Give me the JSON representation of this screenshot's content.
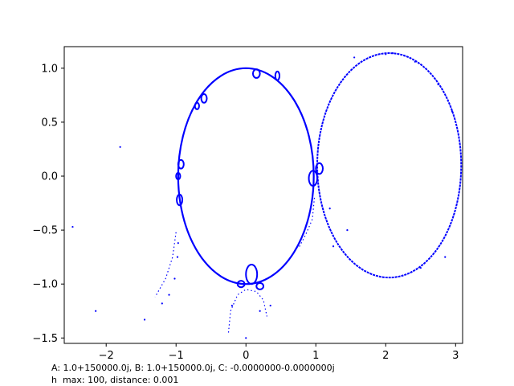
{
  "chart_data": {
    "type": "scatter",
    "title": "",
    "xlabel": "",
    "ylabel": "",
    "xlim": [
      -2.6,
      3.1
    ],
    "ylim": [
      -1.55,
      1.2
    ],
    "xticks": [
      -2,
      -1,
      0,
      1,
      2,
      3
    ],
    "xtick_labels": [
      "−2",
      "−1",
      "0",
      "1",
      "2",
      "3"
    ],
    "yticks": [
      -1.5,
      -1.0,
      -0.5,
      0.0,
      0.5,
      1.0
    ],
    "ytick_labels": [
      "−1.5",
      "−1.0",
      "−0.5",
      "0.0",
      "0.5",
      "1.0"
    ],
    "grid": false,
    "legend": "none",
    "point_color": "#0000ff",
    "line_color": "#000000",
    "curves": [
      {
        "kind": "ellipse",
        "cx": 0.0,
        "cy": 0.0,
        "rx": 0.97,
        "ry": 1.0
      },
      {
        "kind": "ellipse",
        "cx": 2.05,
        "cy": 0.1,
        "rx": 1.03,
        "ry": 1.04
      }
    ],
    "loops": [
      {
        "x": 0.08,
        "y": -0.91,
        "rx": 0.08,
        "ry": 0.09
      },
      {
        "x": -0.07,
        "y": -1.0,
        "rx": 0.05,
        "ry": 0.03
      },
      {
        "x": 0.2,
        "y": -1.02,
        "rx": 0.05,
        "ry": 0.03
      },
      {
        "x": -0.95,
        "y": -0.22,
        "rx": 0.04,
        "ry": 0.05
      },
      {
        "x": -0.93,
        "y": 0.11,
        "rx": 0.04,
        "ry": 0.04
      },
      {
        "x": -0.97,
        "y": 0.0,
        "rx": 0.03,
        "ry": 0.03
      },
      {
        "x": 0.96,
        "y": -0.02,
        "rx": 0.06,
        "ry": 0.07
      },
      {
        "x": 1.05,
        "y": 0.07,
        "rx": 0.05,
        "ry": 0.05
      },
      {
        "x": 0.15,
        "y": 0.95,
        "rx": 0.05,
        "ry": 0.04
      },
      {
        "x": 0.45,
        "y": 0.93,
        "rx": 0.03,
        "ry": 0.04
      },
      {
        "x": -0.6,
        "y": 0.72,
        "rx": 0.04,
        "ry": 0.04
      },
      {
        "x": -0.7,
        "y": 0.65,
        "rx": 0.03,
        "ry": 0.03
      }
    ],
    "scatter_points": [
      [
        -2.48,
        -0.47
      ],
      [
        -2.15,
        -1.25
      ],
      [
        -1.8,
        0.27
      ],
      [
        -1.45,
        -1.33
      ],
      [
        -1.2,
        -1.18
      ],
      [
        -1.1,
        -1.1
      ],
      [
        -1.02,
        -0.95
      ],
      [
        -0.98,
        -0.75
      ],
      [
        -0.97,
        -0.62
      ],
      [
        0.0,
        -1.5
      ],
      [
        0.35,
        -1.2
      ],
      [
        0.2,
        -1.25
      ],
      [
        -0.2,
        -1.2
      ],
      [
        2.42,
        1.06
      ],
      [
        2.75,
        0.85
      ],
      [
        2.1,
        1.14
      ],
      [
        2.0,
        1.13
      ],
      [
        1.55,
        1.1
      ],
      [
        2.95,
        0.6
      ],
      [
        1.25,
        -0.65
      ],
      [
        2.85,
        -0.75
      ],
      [
        2.5,
        -0.85
      ],
      [
        1.45,
        -0.5
      ],
      [
        1.2,
        -0.3
      ]
    ],
    "branches": [
      {
        "points": [
          [
            -1.0,
            -0.52
          ],
          [
            -1.05,
            -0.75
          ],
          [
            -1.15,
            -0.95
          ],
          [
            -1.3,
            -1.12
          ]
        ]
      },
      {
        "points": [
          [
            -0.25,
            -1.45
          ],
          [
            -0.22,
            -1.25
          ],
          [
            -0.12,
            -1.1
          ],
          [
            0.0,
            -1.05
          ],
          [
            0.15,
            -1.07
          ],
          [
            0.25,
            -1.15
          ],
          [
            0.3,
            -1.3
          ]
        ]
      },
      {
        "points": [
          [
            0.98,
            -0.2
          ],
          [
            0.95,
            -0.4
          ],
          [
            0.85,
            -0.55
          ],
          [
            0.75,
            -0.67
          ]
        ]
      }
    ],
    "annotations": [
      "A: 1.0+150000.0j, B: 1.0+150000.0j, C: -0.0000000-0.0000000j",
      "h  max: 100, distance: 0.001"
    ]
  }
}
